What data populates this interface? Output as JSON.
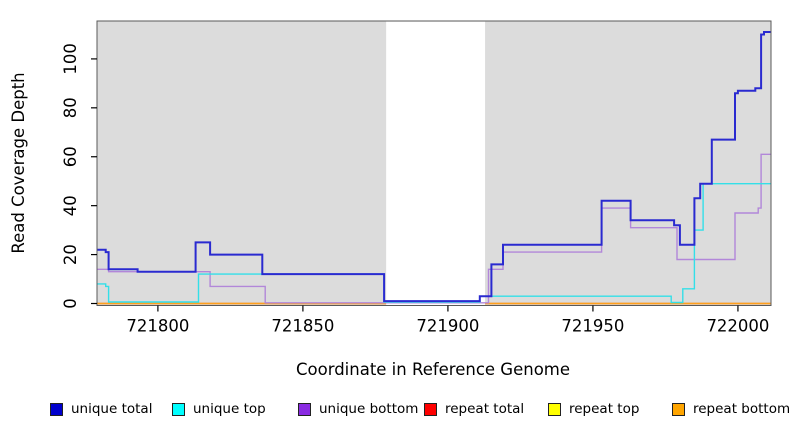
{
  "figure": {
    "y_axis_title": "Read Coverage Depth",
    "x_axis_title": "Coordinate in Reference Genome",
    "background_color": "#ffffff"
  },
  "chart_data": {
    "type": "line",
    "step_mode": "after",
    "title": "",
    "xlabel": "Coordinate in Reference Genome",
    "ylabel": "Read Coverage Depth",
    "xlim": [
      721779,
      722011.4
    ],
    "ylim": [
      0,
      115.5
    ],
    "x_ticks": [
      721800,
      721850,
      721900,
      721950,
      722000
    ],
    "y_ticks": [
      0,
      20,
      40,
      60,
      80,
      100
    ],
    "grid": false,
    "plot_background": "#dcdcdc",
    "border_color": "#5a5a5a",
    "masked_region": {
      "x_start": 721878.7,
      "x_end": 721912.8,
      "color": "#ffffff"
    },
    "legend_position": "bottom",
    "series": [
      {
        "name": "repeat top",
        "color": "#ffff00",
        "legend_color": "#ffff00",
        "width": 1.3,
        "layer": 0,
        "points": [
          [
            721779,
            0
          ]
        ]
      },
      {
        "name": "repeat total",
        "color": "#e8203c",
        "legend_color": "#ff0000",
        "width": 1.3,
        "layer": 0,
        "points": [
          [
            721779,
            0
          ]
        ]
      },
      {
        "name": "repeat bottom",
        "color": "#ffa01d",
        "legend_color": "#ffa500",
        "width": 1.6,
        "layer": 0,
        "points": [
          [
            721779,
            0
          ]
        ]
      },
      {
        "name": "unique bottom",
        "color": "#b287d9",
        "legend_color": "#8a2be2",
        "width": 1.4,
        "layer": 1,
        "points": [
          [
            721779,
            14
          ],
          [
            721783,
            13
          ],
          [
            721818,
            7
          ],
          [
            721837,
            0.3
          ],
          [
            721914,
            14
          ],
          [
            721919,
            21
          ],
          [
            721953,
            39
          ],
          [
            721963,
            31
          ],
          [
            721979,
            18
          ],
          [
            721999,
            37
          ],
          [
            722007,
            39
          ],
          [
            722008,
            61
          ]
        ]
      },
      {
        "name": "unique top",
        "color": "#33dfe8",
        "legend_color": "#00ffff",
        "width": 1.4,
        "layer": 1,
        "points": [
          [
            721779,
            8
          ],
          [
            721782,
            7
          ],
          [
            721783,
            0.6
          ],
          [
            721814,
            12
          ],
          [
            721878,
            0.6
          ],
          [
            721911,
            3
          ],
          [
            721977,
            0.4
          ],
          [
            721981,
            6
          ],
          [
            721985,
            30
          ],
          [
            721988,
            49
          ]
        ]
      },
      {
        "name": "unique total",
        "color": "#2a2ad0",
        "legend_color": "#0000cd",
        "width": 2,
        "layer": 1,
        "points": [
          [
            721779,
            22
          ],
          [
            721782,
            21
          ],
          [
            721783,
            14
          ],
          [
            721793,
            13
          ],
          [
            721813,
            25
          ],
          [
            721818,
            20
          ],
          [
            721836,
            12
          ],
          [
            721878,
            1
          ],
          [
            721911,
            3
          ],
          [
            721915,
            16
          ],
          [
            721919,
            24
          ],
          [
            721953,
            42
          ],
          [
            721963,
            34
          ],
          [
            721978,
            32
          ],
          [
            721980,
            24
          ],
          [
            721985,
            43
          ],
          [
            721987,
            49
          ],
          [
            721991,
            67
          ],
          [
            721999,
            86
          ],
          [
            722000,
            87
          ],
          [
            722006,
            88
          ],
          [
            722008,
            110
          ],
          [
            722009,
            111
          ]
        ]
      }
    ],
    "legend": [
      {
        "label": "unique total",
        "color": "#0000cd"
      },
      {
        "label": "unique top",
        "color": "#00ffff"
      },
      {
        "label": "unique bottom",
        "color": "#8a2be2"
      },
      {
        "label": "repeat total",
        "color": "#ff0000"
      },
      {
        "label": "repeat top",
        "color": "#ffff00"
      },
      {
        "label": "repeat bottom",
        "color": "#ffa500"
      }
    ]
  }
}
